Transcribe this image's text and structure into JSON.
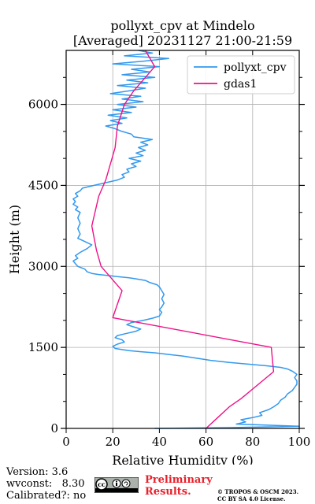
{
  "chart_data": {
    "type": "line",
    "title": "pollyxt_cpv at Mindelo",
    "subtitle": "[Averaged] 20231127 21:00-21:59",
    "xlabel": "Relative Humidity (%)",
    "ylabel": "Height (m)",
    "xlim": [
      0,
      100
    ],
    "ylim": [
      0,
      7000
    ],
    "xticks": [
      "0",
      "20",
      "40",
      "60",
      "80",
      "100"
    ],
    "yticks": [
      "0",
      "1500",
      "3000",
      "4500",
      "6000"
    ],
    "grid": true,
    "legend_position": "top-right",
    "series": [
      {
        "name": "pollyxt_cpv",
        "color": "#3399ee",
        "points": [
          [
            38,
            0
          ],
          [
            70,
            15
          ],
          [
            100,
            40
          ],
          [
            73,
            80
          ],
          [
            77,
            120
          ],
          [
            75,
            160
          ],
          [
            80,
            200
          ],
          [
            84,
            240
          ],
          [
            83,
            290
          ],
          [
            87,
            350
          ],
          [
            89,
            400
          ],
          [
            91,
            460
          ],
          [
            92,
            520
          ],
          [
            94,
            580
          ],
          [
            95,
            640
          ],
          [
            97,
            700
          ],
          [
            98,
            760
          ],
          [
            99,
            820
          ],
          [
            99,
            880
          ],
          [
            98,
            940
          ],
          [
            99,
            1000
          ],
          [
            97,
            1060
          ],
          [
            95,
            1100
          ],
          [
            92,
            1130
          ],
          [
            86,
            1160
          ],
          [
            78,
            1190
          ],
          [
            70,
            1220
          ],
          [
            62,
            1260
          ],
          [
            56,
            1300
          ],
          [
            50,
            1340
          ],
          [
            44,
            1370
          ],
          [
            38,
            1400
          ],
          [
            32,
            1420
          ],
          [
            27,
            1440
          ],
          [
            24,
            1460
          ],
          [
            21,
            1480
          ],
          [
            20,
            1520
          ],
          [
            22,
            1560
          ],
          [
            25,
            1600
          ],
          [
            24,
            1640
          ],
          [
            21,
            1680
          ],
          [
            22,
            1720
          ],
          [
            26,
            1760
          ],
          [
            30,
            1800
          ],
          [
            32,
            1840
          ],
          [
            29,
            1880
          ],
          [
            26,
            1920
          ],
          [
            28,
            1960
          ],
          [
            33,
            2000
          ],
          [
            37,
            2040
          ],
          [
            40,
            2080
          ],
          [
            41,
            2150
          ],
          [
            40,
            2200
          ],
          [
            41,
            2250
          ],
          [
            42,
            2320
          ],
          [
            41,
            2400
          ],
          [
            42,
            2480
          ],
          [
            41,
            2550
          ],
          [
            40,
            2620
          ],
          [
            39,
            2660
          ],
          [
            36,
            2700
          ],
          [
            34,
            2740
          ],
          [
            30,
            2770
          ],
          [
            27,
            2790
          ],
          [
            22,
            2810
          ],
          [
            18,
            2830
          ],
          [
            14,
            2850
          ],
          [
            11,
            2870
          ],
          [
            9,
            2900
          ],
          [
            8,
            2950
          ],
          [
            5,
            3000
          ],
          [
            4,
            3050
          ],
          [
            3,
            3100
          ],
          [
            5,
            3150
          ],
          [
            4,
            3200
          ],
          [
            6,
            3260
          ],
          [
            9,
            3330
          ],
          [
            11,
            3400
          ],
          [
            8,
            3460
          ],
          [
            5,
            3520
          ],
          [
            6,
            3600
          ],
          [
            5,
            3700
          ],
          [
            6,
            3800
          ],
          [
            5,
            3900
          ],
          [
            6,
            4000
          ],
          [
            4,
            4050
          ],
          [
            5,
            4100
          ],
          [
            3,
            4150
          ],
          [
            4,
            4200
          ],
          [
            3,
            4250
          ],
          [
            5,
            4300
          ],
          [
            4,
            4350
          ],
          [
            6,
            4400
          ],
          [
            7,
            4450
          ],
          [
            12,
            4500
          ],
          [
            17,
            4550
          ],
          [
            22,
            4600
          ],
          [
            25,
            4650
          ],
          [
            24,
            4700
          ],
          [
            27,
            4750
          ],
          [
            26,
            4800
          ],
          [
            30,
            4850
          ],
          [
            28,
            4900
          ],
          [
            32,
            4950
          ],
          [
            27,
            5000
          ],
          [
            33,
            5050
          ],
          [
            30,
            5100
          ],
          [
            34,
            5150
          ],
          [
            31,
            5200
          ],
          [
            35,
            5250
          ],
          [
            32,
            5300
          ],
          [
            37,
            5350
          ],
          [
            29,
            5400
          ],
          [
            28,
            5450
          ],
          [
            24,
            5500
          ],
          [
            21,
            5550
          ],
          [
            17,
            5600
          ],
          [
            24,
            5650
          ],
          [
            19,
            5700
          ],
          [
            26,
            5750
          ],
          [
            18,
            5800
          ],
          [
            28,
            5850
          ],
          [
            20,
            5900
          ],
          [
            30,
            5950
          ],
          [
            22,
            6000
          ],
          [
            33,
            6050
          ],
          [
            24,
            6100
          ],
          [
            32,
            6150
          ],
          [
            19,
            6200
          ],
          [
            27,
            6250
          ],
          [
            34,
            6300
          ],
          [
            22,
            6350
          ],
          [
            35,
            6400
          ],
          [
            26,
            6450
          ],
          [
            38,
            6500
          ],
          [
            24,
            6550
          ],
          [
            36,
            6600
          ],
          [
            28,
            6650
          ],
          [
            40,
            6700
          ],
          [
            20,
            6750
          ],
          [
            33,
            6800
          ],
          [
            44,
            6850
          ],
          [
            25,
            6900
          ],
          [
            37,
            6950
          ],
          [
            31,
            7000
          ]
        ]
      },
      {
        "name": "gdas1",
        "color": "#ee1188",
        "points": [
          [
            60,
            0
          ],
          [
            65,
            200
          ],
          [
            70,
            400
          ],
          [
            75,
            550
          ],
          [
            89,
            1050
          ],
          [
            88,
            1500
          ],
          [
            20,
            2050
          ],
          [
            24,
            2550
          ],
          [
            15,
            3000
          ],
          [
            13,
            3300
          ],
          [
            11,
            3750
          ],
          [
            14,
            4300
          ],
          [
            17,
            4600
          ],
          [
            21,
            5200
          ],
          [
            22,
            5600
          ],
          [
            25,
            6000
          ],
          [
            29,
            6250
          ],
          [
            38,
            6700
          ],
          [
            34,
            7000
          ]
        ]
      }
    ]
  },
  "footer": {
    "version": "Version: 3.6",
    "wvconst": "wvconst:   8.30",
    "calibrated": "Calibrated?: no",
    "preliminary_line1": "Preliminary",
    "preliminary_line2": "Results.",
    "copyright_line1": "© TROPOS & OSCM 2023.",
    "copyright_line2": "CC BY SA 4.0 License.",
    "license_badge": "cc by sa"
  }
}
